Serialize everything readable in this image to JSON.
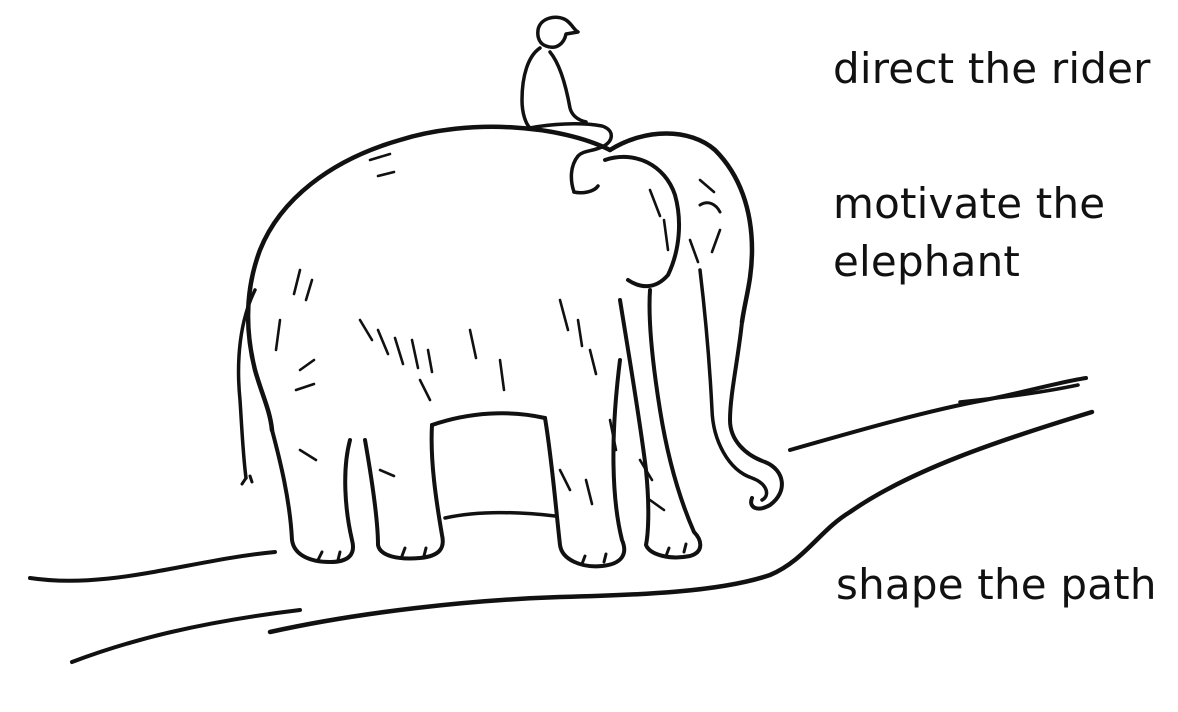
{
  "labels": {
    "rider": "direct the rider",
    "elephant_line1": "motivate the",
    "elephant_line2": "elephant",
    "path": "shape the path"
  },
  "colors": {
    "ink": "#111111",
    "background": "#ffffff"
  },
  "icons": [
    "rider-illustration",
    "elephant-illustration",
    "path-illustration"
  ]
}
